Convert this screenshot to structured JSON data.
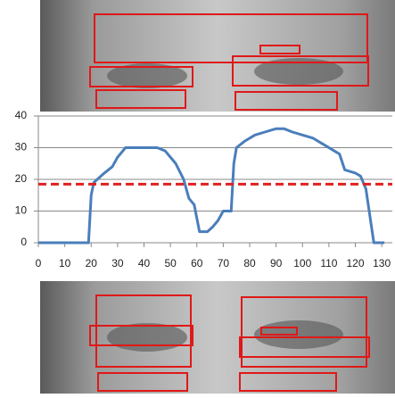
{
  "chart_data": {
    "type": "line",
    "color": "#4a7ebb",
    "x": [
      0,
      19,
      20,
      21,
      25,
      28,
      30,
      33,
      35,
      45,
      48,
      52,
      55,
      57,
      59,
      61,
      64,
      66,
      68,
      70,
      73,
      74,
      75,
      78,
      82,
      86,
      90,
      93,
      96,
      100,
      104,
      108,
      112,
      114,
      116,
      120,
      122,
      124,
      127,
      131
    ],
    "values": [
      0,
      0,
      15,
      19,
      22,
      24,
      27,
      30,
      30,
      30,
      29,
      25,
      20,
      14,
      12,
      3.5,
      3.5,
      5,
      7,
      10,
      10,
      25,
      30,
      32,
      34,
      35,
      36,
      36,
      35,
      34,
      33,
      31,
      29,
      28,
      23,
      22,
      21,
      17,
      0,
      0
    ],
    "reference_line": {
      "value": 18.5,
      "color": "#e02020"
    },
    "xlim": [
      0,
      134
    ],
    "ylim": [
      0,
      40
    ],
    "xticks": [
      0,
      10,
      20,
      30,
      40,
      50,
      60,
      70,
      80,
      90,
      100,
      110,
      120,
      130
    ],
    "yticks": [
      0,
      10,
      20,
      30,
      40
    ],
    "grid": true
  }
}
